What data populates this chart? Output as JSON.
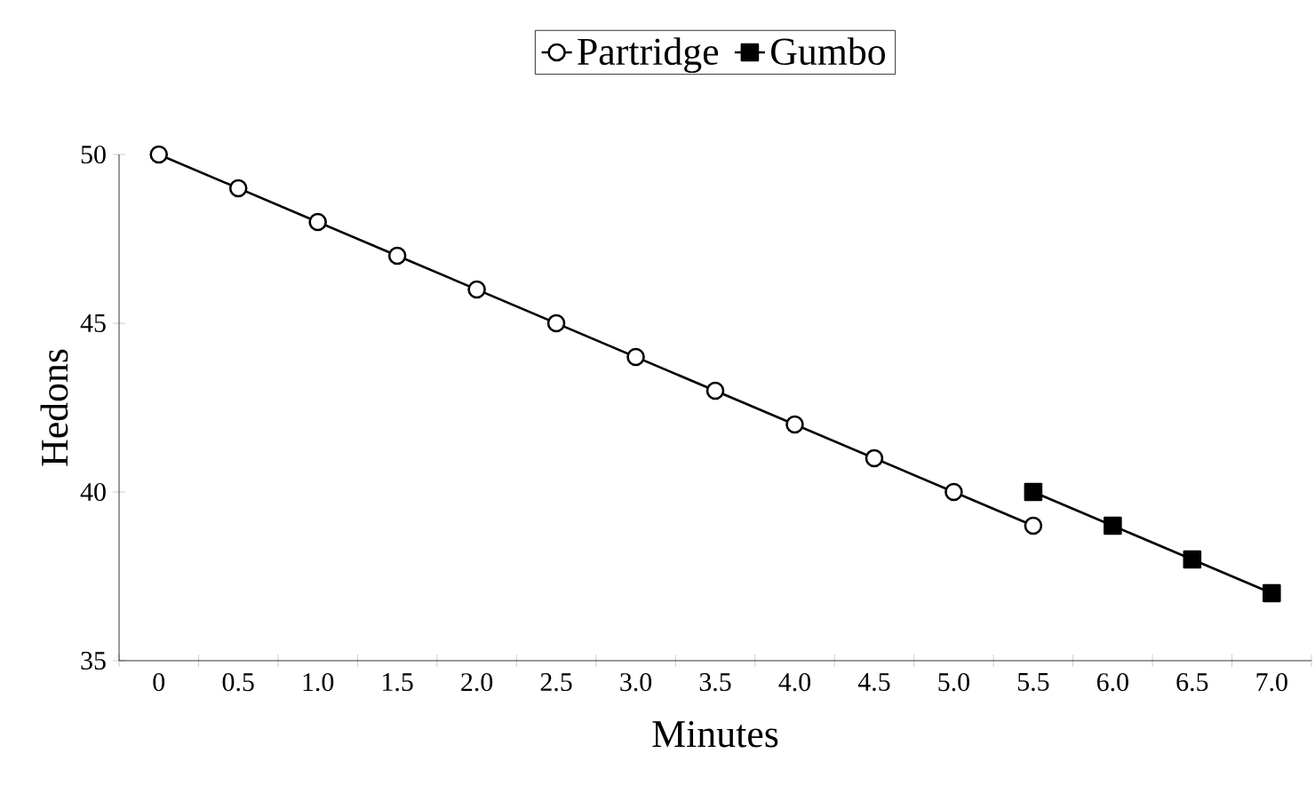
{
  "chart_data": {
    "type": "line",
    "xlabel": "Minutes",
    "ylabel": "Hedons",
    "categories": [
      "0",
      "0.5",
      "1.0",
      "1.5",
      "2.0",
      "2.5",
      "3.0",
      "3.5",
      "4.0",
      "4.5",
      "5.0",
      "5.5",
      "6.0",
      "6.5",
      "7.0"
    ],
    "series": [
      {
        "name": "Partridge",
        "color": "#000000",
        "marker": "circle",
        "values": [
          50,
          49,
          48,
          47,
          46,
          45,
          44,
          43,
          42,
          41,
          40,
          39,
          null,
          null,
          null
        ]
      },
      {
        "name": "Gumbo",
        "color": "#000000",
        "marker": "square",
        "values": [
          null,
          null,
          null,
          null,
          null,
          null,
          null,
          null,
          null,
          null,
          null,
          40,
          39,
          38,
          37
        ]
      }
    ],
    "ylim": [
      35,
      50
    ],
    "yticks": [
      35,
      40,
      45,
      50
    ],
    "grid": false,
    "legend": "top",
    "line_style": "solid"
  }
}
